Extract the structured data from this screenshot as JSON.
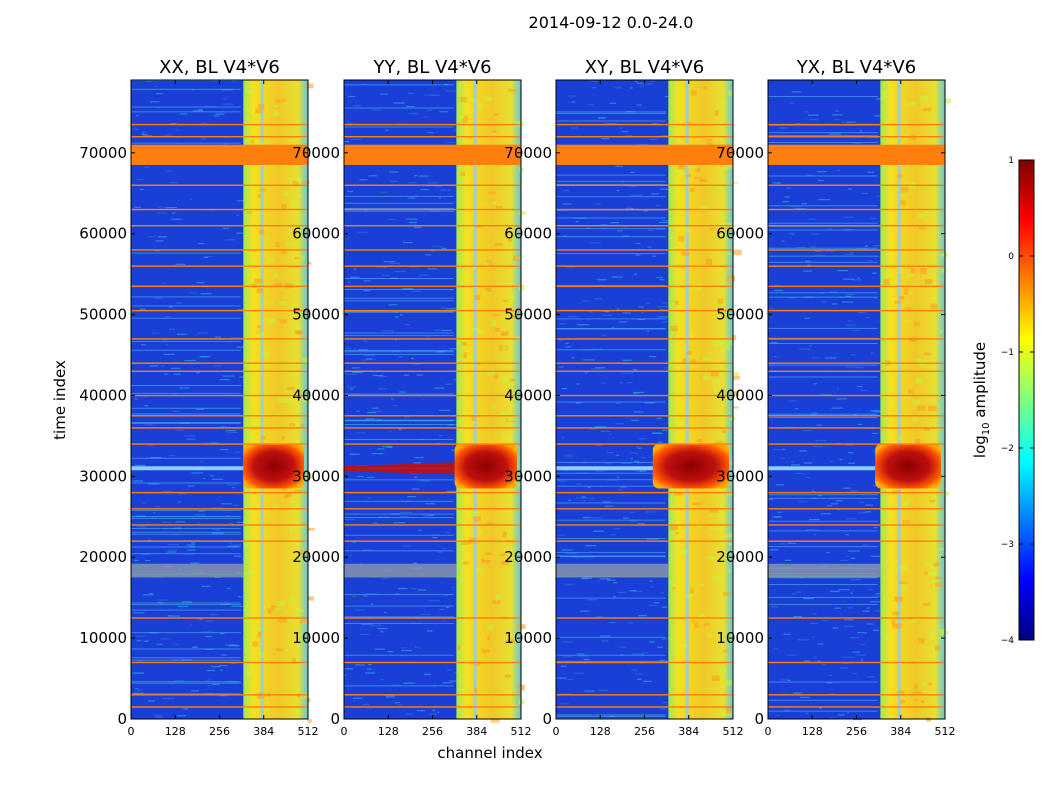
{
  "figure_title": "2014-09-12 0.0-24.0",
  "xlabel": "channel index",
  "ylabel": "time index",
  "colorbar": {
    "label_prefix": "log",
    "label_sub": "10",
    "label_suffix": " amplitude",
    "range": [
      -4,
      1
    ],
    "ticks": [
      {
        "value": 1,
        "label": "1"
      },
      {
        "value": 0,
        "label": "0"
      },
      {
        "value": -1,
        "label": "−1"
      },
      {
        "value": -2,
        "label": "−2"
      },
      {
        "value": -3,
        "label": "−3"
      },
      {
        "value": -4,
        "label": "−4"
      }
    ],
    "stops": [
      "#00007f",
      "#0000ff",
      "#007fff",
      "#00ffff",
      "#7fff7f",
      "#ffff00",
      "#ff7f00",
      "#ff0000",
      "#7f0000"
    ],
    "colors": {
      "low_bg": "#1a3fd6",
      "mid_noise": "#2f9fe8",
      "band": "#f2dc2a",
      "hot": "#c01010",
      "flag": "#ff7f0e",
      "flag_dark": "#e05a00",
      "gray_flag": "#8a9aa8"
    }
  },
  "chart_data": {
    "type": "heatmap",
    "title": "2014-09-12 0.0-24.0",
    "xlim": [
      0,
      512
    ],
    "ylim": [
      0,
      79000
    ],
    "x_ticks": [
      0,
      128,
      256,
      384,
      512
    ],
    "y_ticks": [
      0,
      10000,
      20000,
      30000,
      40000,
      50000,
      60000,
      70000
    ],
    "panels": [
      {
        "name": "XX",
        "title": "XX, BL V4*V6",
        "hot_extent": [
          325,
          512
        ],
        "feature": "partial_streak"
      },
      {
        "name": "YY",
        "title": "YY, BL V4*V6",
        "hot_extent": [
          320,
          512
        ],
        "feature": "full_streak"
      },
      {
        "name": "XY",
        "title": "XY, BL V4*V6",
        "hot_extent": [
          280,
          512
        ],
        "feature": "partial_streak"
      },
      {
        "name": "YX",
        "title": "YX, BL V4*V6",
        "hot_extent": [
          310,
          512
        ],
        "feature": "partial_streak"
      }
    ],
    "rfi_band_channels": [
      325,
      512
    ],
    "flagged_time_ranges": [
      [
        68500,
        71000
      ],
      [
        17500,
        19200
      ]
    ],
    "flagged_time_lines": [
      73500,
      72000,
      66000,
      63000,
      61000,
      58000,
      56000,
      53500,
      50500,
      47000,
      44000,
      43000,
      40000,
      37500,
      36000,
      34000,
      28000,
      26000,
      24000,
      22000,
      12500,
      7000,
      3000,
      1500
    ],
    "hot_time_range": [
      28500,
      34000
    ]
  }
}
